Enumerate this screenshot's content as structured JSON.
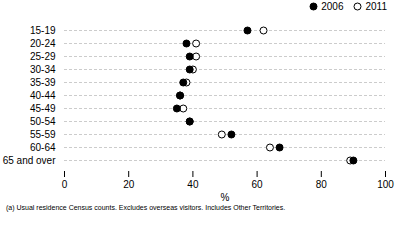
{
  "chart_data": {
    "type": "dot",
    "categories": [
      "15-19",
      "20-24",
      "25-29",
      "30-34",
      "35-39",
      "40-44",
      "45-49",
      "50-54",
      "55-59",
      "60-64",
      "65 and over"
    ],
    "series": [
      {
        "name": "2006",
        "color": "#000000",
        "marker": "filled_circle",
        "values": [
          57,
          38,
          39,
          39,
          37,
          36,
          35,
          39,
          52,
          67,
          90
        ]
      },
      {
        "name": "2011",
        "color": "#000000",
        "marker": "open_circle",
        "values": [
          62,
          41,
          41,
          40,
          38,
          36,
          37,
          39,
          49,
          64,
          89
        ]
      }
    ],
    "xlabel": "%",
    "xlim": [
      0,
      100
    ],
    "xticks": [
      0,
      20,
      40,
      60,
      80,
      100
    ],
    "grid": true,
    "legend": "upper right",
    "footnote": "(a) Usual residence Census counts.  Excludes overseas visitors.  Includes Other Territories."
  }
}
